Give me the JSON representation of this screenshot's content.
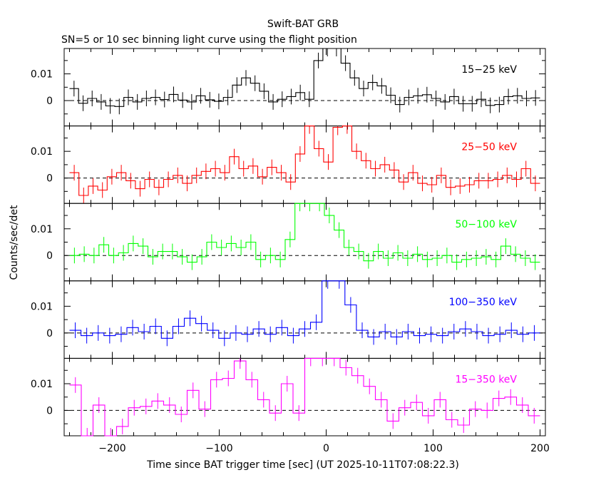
{
  "chart_data": {
    "type": "line",
    "title": "Swift-BAT GRB",
    "subtitle": "SN=5 or 10 sec binning light curve using the flight position",
    "xlabel": "Time since BAT trigger time [sec] (UT 2025-10-11T07:08:22.3)",
    "ylabel": "Counts/sec/det",
    "xlim": [
      -245,
      205
    ],
    "ylim": [
      -0.0095,
      0.0195
    ],
    "x_ticks": [
      -200,
      -100,
      0,
      100,
      200
    ],
    "x_tick_labels": [
      "−200",
      "−100",
      "0",
      "100",
      "200"
    ],
    "y_ticks": [
      0,
      0.01
    ],
    "y_tick_labels": [
      "0",
      "0.01"
    ],
    "grid": false,
    "zero_line": "dashed",
    "panels": [
      {
        "name": "15−25 keV",
        "color": "#000000",
        "values": [
          0.0045,
          -0.001,
          0.0008,
          -0.0005,
          -0.002,
          -0.0022,
          0.0012,
          -0.0005,
          0.0008,
          0.0012,
          0.0004,
          0.0023,
          0.0002,
          -0.0005,
          0.0018,
          0.0003,
          -0.0003,
          0.0012,
          0.0058,
          0.0085,
          0.0065,
          0.0035,
          -0.0005,
          0.0005,
          0.0015,
          0.003,
          0.0005,
          0.015,
          0.0195,
          0.0195,
          0.014,
          0.0085,
          0.0045,
          0.0068,
          0.0055,
          0.002,
          -0.0015,
          0.0012,
          0.0018,
          0.0022,
          0.0008,
          -0.0005,
          0.0015,
          -0.0012,
          -0.0012,
          0.0005,
          -0.0018,
          -0.0015,
          0.0015,
          0.0018,
          0.0008,
          0.001
        ]
      },
      {
        "name": "25−50 keV",
        "color": "#ff0000",
        "values": [
          0.002,
          -0.0065,
          -0.003,
          -0.0045,
          0.0005,
          0.002,
          -0.001,
          -0.004,
          -0.0005,
          -0.0035,
          -0.0005,
          0.001,
          -0.002,
          0.001,
          0.0025,
          0.0035,
          0.002,
          0.008,
          0.0035,
          0.0045,
          0.0005,
          0.004,
          0.002,
          -0.0015,
          0.009,
          0.0195,
          0.011,
          0.006,
          0.019,
          0.0195,
          0.01,
          0.0065,
          0.0035,
          0.005,
          0.003,
          -0.0015,
          0.002,
          -0.002,
          -0.0025,
          0.001,
          -0.0035,
          -0.003,
          -0.0025,
          -0.001,
          -0.001,
          -0.0005,
          0.001,
          -0.0005,
          0.0035,
          -0.002
        ]
      },
      {
        "name": "50−100 keV",
        "color": "#00ff00",
        "values": [
          0.0,
          0.0005,
          0.0,
          0.004,
          0.0,
          0.001,
          0.0045,
          0.0035,
          -0.0005,
          0.0015,
          0.0015,
          -0.0005,
          -0.0025,
          -0.0005,
          0.005,
          0.003,
          0.0045,
          0.003,
          0.005,
          -0.0015,
          0.0,
          -0.0015,
          0.006,
          0.0195,
          0.0195,
          0.0195,
          0.015,
          0.0095,
          0.003,
          0.0015,
          -0.002,
          0.0015,
          -0.001,
          0.001,
          -0.001,
          0.0005,
          -0.0015,
          -0.001,
          0.0,
          -0.0025,
          -0.0015,
          -0.001,
          -0.0005,
          -0.0015,
          0.0035,
          0.0005,
          -0.001,
          -0.0025
        ]
      },
      {
        "name": "100−350 keV",
        "color": "#0000ff",
        "values": [
          0.001,
          -0.001,
          0.0,
          -0.001,
          -0.0005,
          0.002,
          0.0005,
          0.0025,
          -0.002,
          0.0025,
          0.0055,
          0.0035,
          0.001,
          -0.002,
          0.0,
          -0.0005,
          0.0015,
          -0.0005,
          0.002,
          -0.001,
          0.0015,
          0.004,
          0.0195,
          0.0195,
          0.0105,
          0.001,
          -0.0015,
          0.0005,
          -0.0015,
          0.0005,
          -0.001,
          -0.0005,
          -0.001,
          0.0005,
          0.0015,
          0.0005,
          -0.001,
          -0.0005,
          0.001,
          -0.0005,
          0.0
        ]
      },
      {
        "name": "15−350 keV",
        "color": "#ff00ff",
        "values": [
          0.0095,
          -0.0095,
          0.002,
          -0.0095,
          -0.006,
          0.001,
          0.0015,
          0.0035,
          0.002,
          -0.0015,
          0.0075,
          0.0005,
          0.0115,
          0.012,
          0.0185,
          0.0115,
          0.004,
          -0.001,
          0.01,
          -0.001,
          0.0195,
          0.0195,
          0.0195,
          0.016,
          0.013,
          0.009,
          0.004,
          -0.004,
          0.001,
          0.003,
          -0.002,
          0.004,
          -0.0035,
          -0.0055,
          0.0005,
          0.0,
          0.0045,
          0.005,
          0.002,
          -0.002
        ]
      }
    ]
  }
}
